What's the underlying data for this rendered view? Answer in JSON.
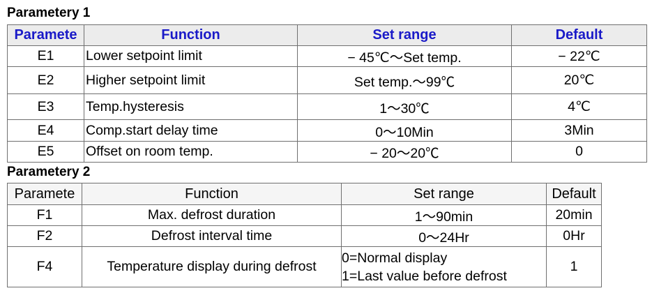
{
  "table1": {
    "title": "Parametery 1",
    "headers": [
      "Paramete",
      "Function",
      "Set range",
      "Default"
    ],
    "rows": [
      {
        "param": "E1",
        "function": "Lower setpoint limit",
        "range": "− 45℃～Set temp.",
        "default": "− 22℃"
      },
      {
        "param": "E2",
        "function": "Higher setpoint limit",
        "range": "Set temp.～99℃",
        "default": "20℃"
      },
      {
        "param": "E3",
        "function": "Temp.hysteresis",
        "range": "1～30℃",
        "default": "4℃"
      },
      {
        "param": "E4",
        "function": "Comp.start delay time",
        "range": "0～10Min",
        "default": "3Min"
      },
      {
        "param": "E5",
        "function": "Offset on room temp.",
        "range": "− 20～20℃",
        "default": "0"
      }
    ]
  },
  "table2": {
    "title": "Parametery 2",
    "headers": [
      "Paramete",
      "Function",
      "Set range",
      "Default"
    ],
    "rows": [
      {
        "param": "F1",
        "function": "Max. defrost duration",
        "range": "1～90min",
        "default": "20min"
      },
      {
        "param": "F2",
        "function": "Defrost interval time",
        "range": "0～24Hr",
        "default": "0Hr"
      },
      {
        "param": "F4",
        "function": "Temperature display during defrost",
        "range_lines": [
          "0=Normal display",
          "1=Last value before defrost"
        ],
        "default": "1"
      }
    ]
  }
}
